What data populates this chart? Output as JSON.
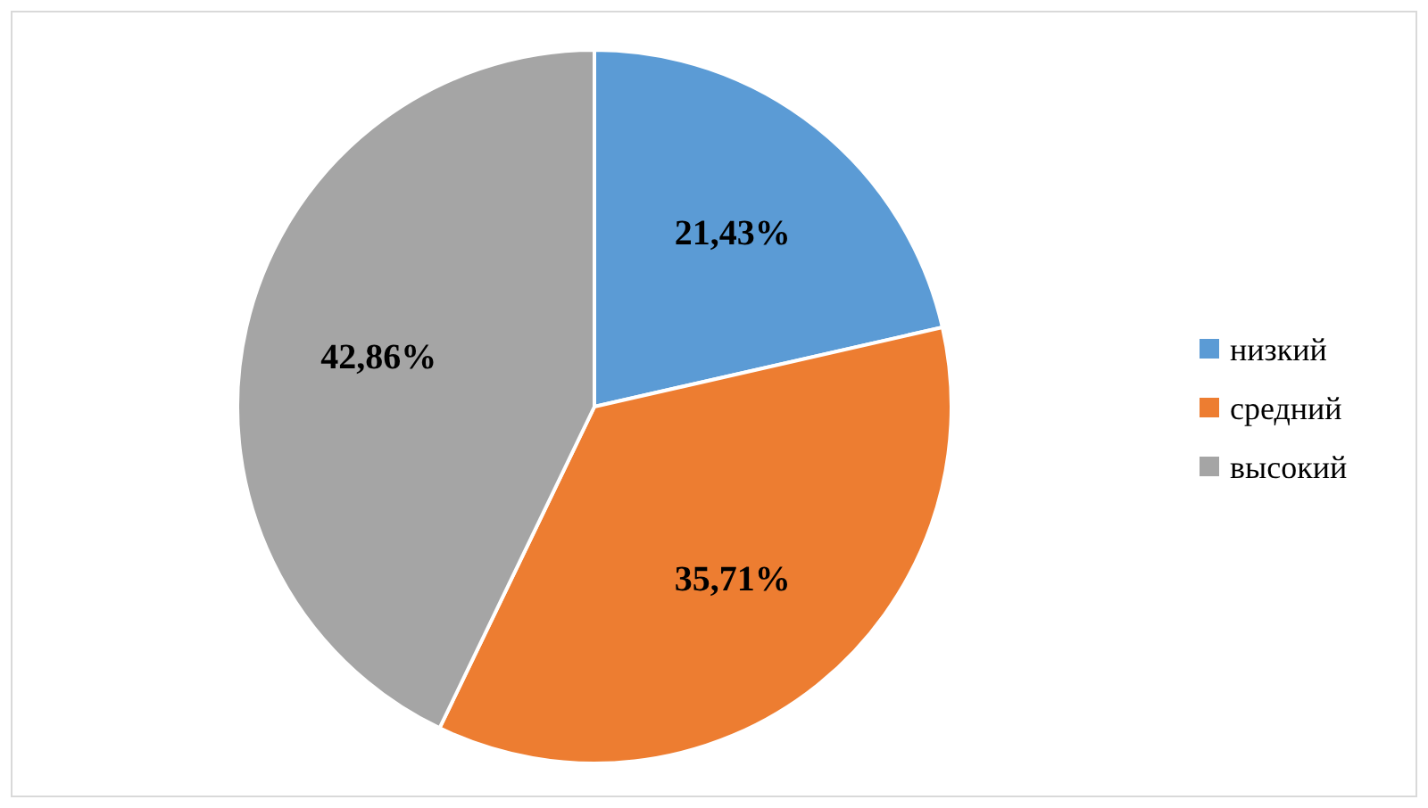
{
  "chart_data": {
    "type": "pie",
    "categories": [
      "низкий",
      "средний",
      "высокий"
    ],
    "values": [
      21.43,
      35.71,
      42.86
    ],
    "colors": [
      "#5b9bd5",
      "#ed7d31",
      "#a5a5a5"
    ],
    "value_labels": [
      "21,43%",
      "35,71%",
      "42,86%"
    ],
    "legend": "right"
  }
}
